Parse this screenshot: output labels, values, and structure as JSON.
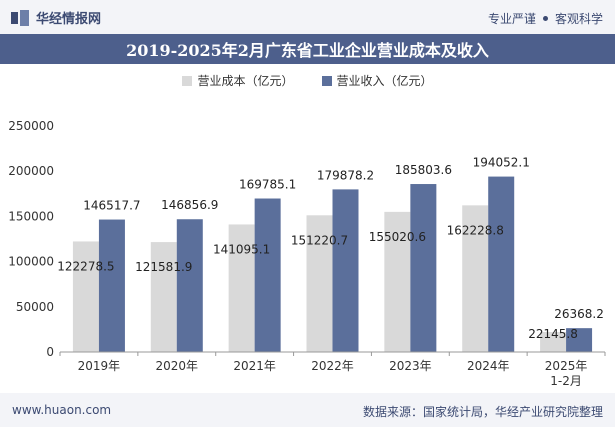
{
  "header": {
    "brand_name": "华经情报网",
    "slogan_left": "专业严谨",
    "slogan_right": "客观科学"
  },
  "footer": {
    "url": "www.huaon.com",
    "source": "数据来源：国家统计局，华经产业研究院整理"
  },
  "colors": {
    "cost": "#d9d9d9",
    "revenue": "#5b6f9b",
    "title_bg": "#4d5f8c",
    "brand": "#3c4a72"
  },
  "chart_data": {
    "type": "bar",
    "title": "2019-2025年2月广东省工业企业营业成本及收入",
    "categories": [
      "2019年",
      "2020年",
      "2021年",
      "2022年",
      "2023年",
      "2024年",
      "2025年\n1-2月"
    ],
    "series": [
      {
        "name": "营业成本（亿元）",
        "values": [
          122278.5,
          121581.9,
          141095.1,
          151220.7,
          155020.6,
          162228.8,
          22145.8
        ],
        "value_labels": [
          "122278.5",
          "121581.9",
          "141095.1",
          "151220.7",
          "155020.6",
          "162228.8",
          "22145.8"
        ]
      },
      {
        "name": "营业收入（亿元）",
        "values": [
          146517.7,
          146856.9,
          169785.1,
          179878.2,
          185803.6,
          194052.1,
          26368.2
        ],
        "value_labels": [
          "146517.7",
          "146856.9",
          "169785.1",
          "179878.2",
          "185803.6",
          "194052.1",
          "26368.2"
        ]
      }
    ],
    "ylim": [
      0,
      250000
    ],
    "yticks": [
      0,
      50000,
      100000,
      150000,
      200000,
      250000
    ],
    "ytick_labels": [
      "0",
      "50000",
      "100000",
      "150000",
      "200000",
      "250000"
    ],
    "legend_position": "top-center",
    "grid": false
  }
}
